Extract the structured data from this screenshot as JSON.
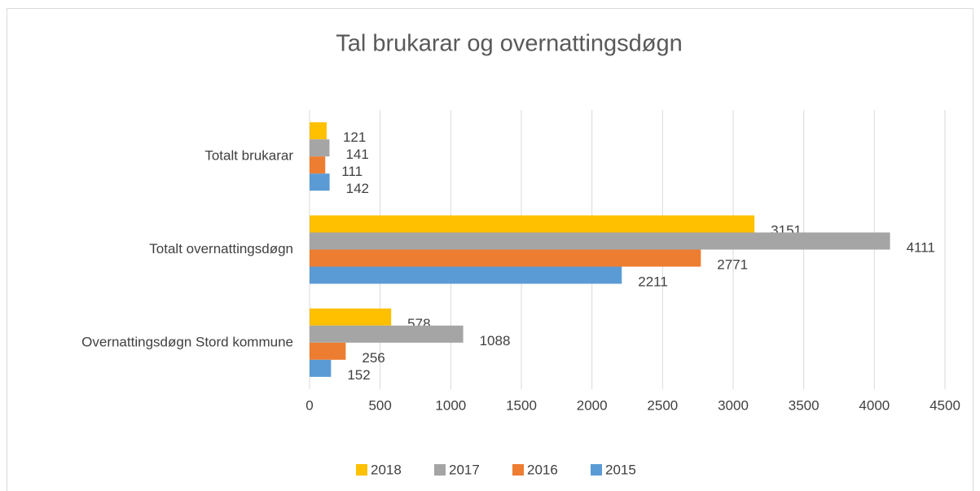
{
  "chart_data": {
    "type": "hbar",
    "title": "Tal brukarar og overnattingsdøgn",
    "categories": [
      "Totalt brukarar",
      "Totalt overnattingsdøgn",
      "Overnattingsdøgn Stord kommune"
    ],
    "series": [
      {
        "name": "2018",
        "color": "#FFC000",
        "values": [
          121,
          3151,
          578
        ]
      },
      {
        "name": "2017",
        "color": "#A5A5A5",
        "values": [
          141,
          4111,
          1088
        ]
      },
      {
        "name": "2016",
        "color": "#ED7D31",
        "values": [
          111,
          2771,
          256
        ]
      },
      {
        "name": "2015",
        "color": "#5B9BD5",
        "values": [
          142,
          2211,
          152
        ]
      }
    ],
    "xlim": [
      0,
      4500
    ],
    "xticks": [
      0,
      500,
      1000,
      1500,
      2000,
      2500,
      3000,
      3500,
      4000,
      4500
    ],
    "grid": true,
    "legend": "bottom"
  }
}
